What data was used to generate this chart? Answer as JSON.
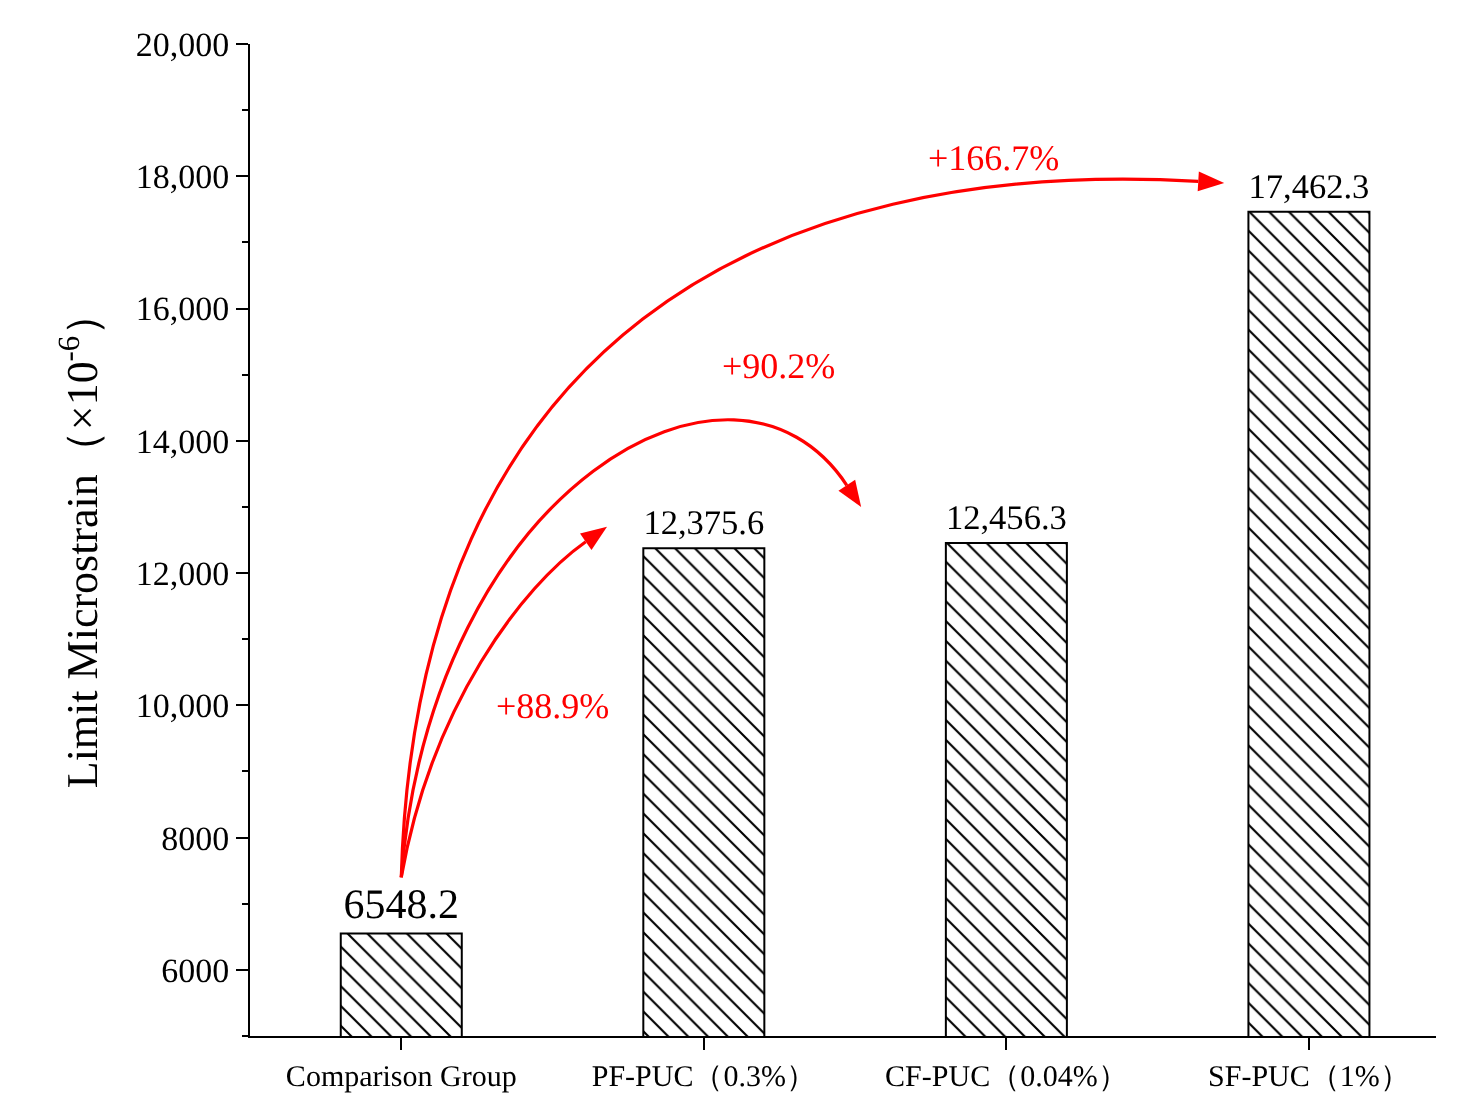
{
  "chart_data": {
    "type": "bar",
    "ylabel": "Limit Microstrain（×10$^{-6}$）",
    "categories": [
      "Comparison Group",
      "PF-PUC（0.3%）",
      "CF-PUC（0.04%）",
      "SF-PUC（1%）"
    ],
    "values": [
      6548.2,
      12375.6,
      12456.3,
      17462.3
    ],
    "value_labels": [
      "6548.2",
      "12,375.6",
      "12,456.3",
      "17,462.3"
    ],
    "color": "#000000",
    "ylim": [
      5000,
      20000
    ],
    "yticks": [
      6000,
      8000,
      {
        "value": 10000,
        "label": "10,000"
      },
      {
        "value": 12000,
        "label": "12,000"
      },
      {
        "value": 14000,
        "label": "14,000"
      },
      {
        "value": 16000,
        "label": "16,000"
      },
      {
        "value": 18000,
        "label": "18,000"
      },
      {
        "value": 20000,
        "label": "20,000"
      }
    ],
    "annotations": [
      "+88.9%",
      "+90.2%",
      "+166.7%"
    ]
  }
}
